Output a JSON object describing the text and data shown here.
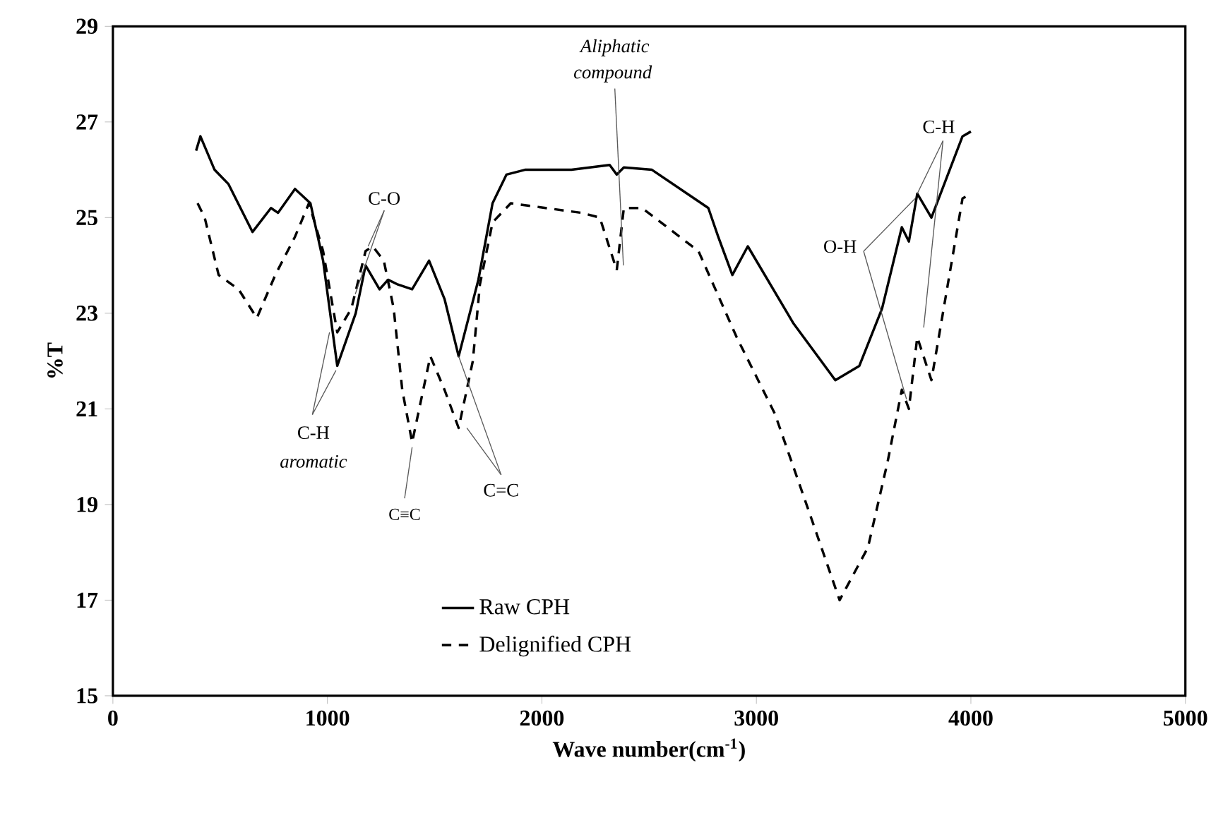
{
  "chart_data": {
    "type": "line",
    "xlabel": "Wave number(cm$^{-1}$)",
    "ylabel": "%T",
    "xlim": [
      0,
      5000
    ],
    "ylim": [
      15,
      29
    ],
    "xticks": [
      0,
      1000,
      2000,
      3000,
      4000,
      5000
    ],
    "yticks": [
      15,
      17,
      19,
      21,
      23,
      25,
      27,
      29
    ],
    "legend": "bottom",
    "grid": false,
    "marker": "none",
    "series": [
      {
        "name": "Raw CPH",
        "color": "#000000",
        "line_style": "solid",
        "x": [
          388,
          408,
          474,
          539,
          651,
          737,
          770,
          849,
          921,
          980,
          1046,
          1132,
          1178,
          1243,
          1283,
          1329,
          1395,
          1474,
          1546,
          1612,
          1704,
          1770,
          1835,
          1921,
          2138,
          2316,
          2349,
          2382,
          2513,
          2776,
          2822,
          2888,
          2960,
          3171,
          3368,
          3480,
          3586,
          3678,
          3711,
          3750,
          3816,
          3961,
          4000
        ],
        "values": [
          26.4,
          26.7,
          26.0,
          25.7,
          24.7,
          25.2,
          25.1,
          25.6,
          25.3,
          24.1,
          21.9,
          23.0,
          24.0,
          23.5,
          23.7,
          23.6,
          23.5,
          24.1,
          23.3,
          22.1,
          23.7,
          25.3,
          25.9,
          26.0,
          26.0,
          26.1,
          25.9,
          26.05,
          26.0,
          25.2,
          24.6,
          23.8,
          24.4,
          22.8,
          21.6,
          21.9,
          23.1,
          24.8,
          24.5,
          25.5,
          25.0,
          26.7,
          26.8
        ]
      },
      {
        "name": "Delignified CPH",
        "color": "#000000",
        "line_style": "dashed",
        "x": [
          395,
          428,
          493,
          586,
          671,
          757,
          849,
          914,
          980,
          1046,
          1112,
          1178,
          1211,
          1263,
          1309,
          1349,
          1395,
          1480,
          1546,
          1612,
          1678,
          1711,
          1770,
          1855,
          2184,
          2270,
          2349,
          2382,
          2467,
          2730,
          2908,
          3086,
          3257,
          3388,
          3520,
          3612,
          3678,
          3711,
          3750,
          3816,
          3961,
          4000
        ],
        "values": [
          25.3,
          25.0,
          23.8,
          23.5,
          22.9,
          23.8,
          24.6,
          25.3,
          24.3,
          22.6,
          23.1,
          24.3,
          24.4,
          24.1,
          23.1,
          21.4,
          20.3,
          22.1,
          21.4,
          20.6,
          22.0,
          23.6,
          24.9,
          25.3,
          25.1,
          25.0,
          23.9,
          25.2,
          25.2,
          24.3,
          22.5,
          20.9,
          18.7,
          17.0,
          18.1,
          19.9,
          21.4,
          21.0,
          22.5,
          21.6,
          25.4,
          25.5
        ]
      }
    ],
    "annotations": [
      {
        "text": "C-O",
        "x": 1190,
        "y": 24.4
      },
      {
        "text": "C-H",
        "x": 1010,
        "y": 22.6
      },
      "aromatic",
      {
        "text": "C≡C",
        "x": 1395,
        "y": 20.2
      },
      {
        "text": "C=C",
        "x": 1612,
        "y": 22.1
      },
      "Aliphatic",
      {
        "text": "compound",
        "x": 2380,
        "y": 24.0
      },
      {
        "text": "O-H",
        "x": 3740,
        "y": 25.4
      },
      {
        "text": "C-H",
        "x": 3750,
        "y": 25.5
      }
    ]
  }
}
